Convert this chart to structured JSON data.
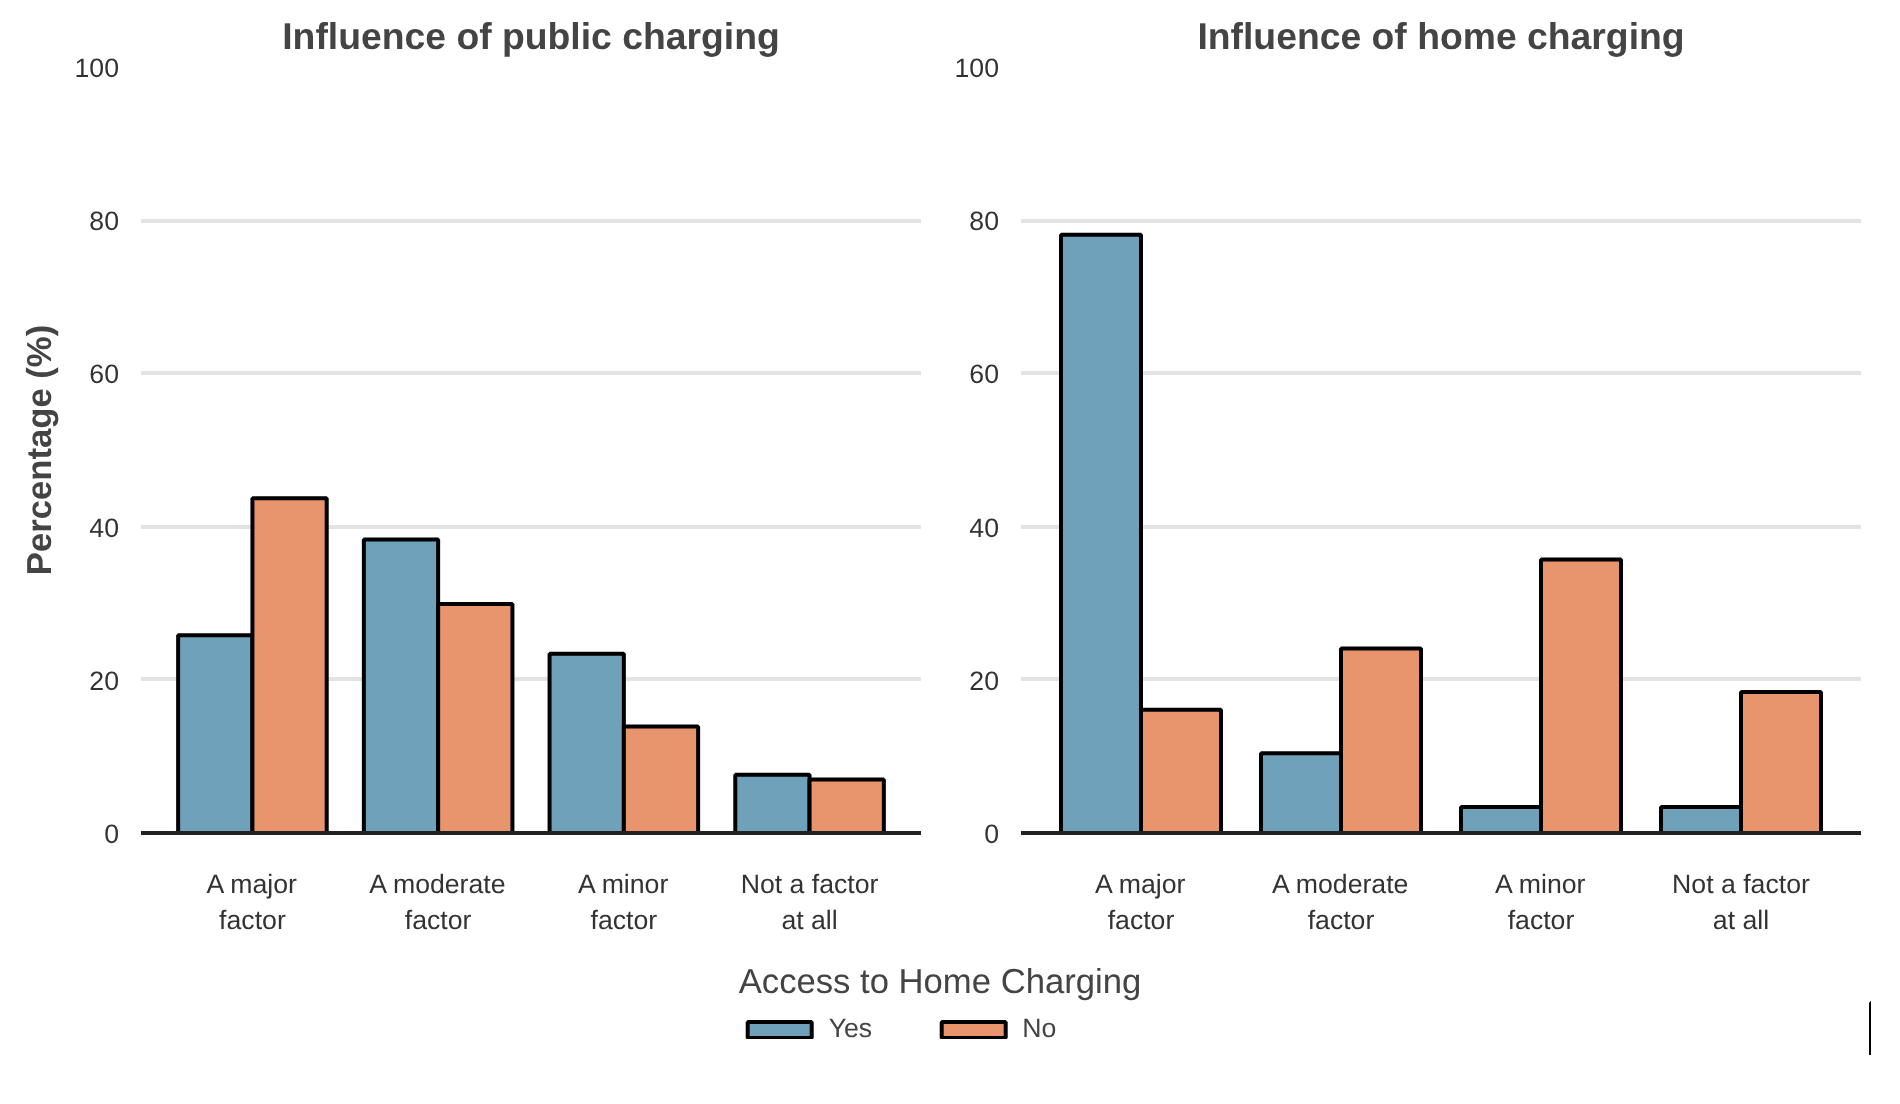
{
  "chart_data": [
    {
      "type": "bar",
      "title": "Influence of public charging",
      "ylabel": "Percentage (%)",
      "legend_title": "Access to Home Charging",
      "legend": "bottom",
      "categories": [
        "A major\nfactor",
        "A moderate\nfactor",
        "A minor\nfactor",
        "Not a factor\nat all"
      ],
      "series": [
        {
          "name": "Yes",
          "color": "#6fa1bb",
          "values": [
            25.8,
            38.3,
            23.4,
            7.6
          ]
        },
        {
          "name": "No",
          "color": "#e8956d",
          "values": [
            43.7,
            29.9,
            13.9,
            7.0
          ]
        }
      ],
      "ylim": [
        0,
        100
      ],
      "yticks": [
        0,
        20,
        40,
        60,
        80,
        100
      ],
      "grid": "y"
    },
    {
      "type": "bar",
      "title": "Influence of home charging",
      "categories": [
        "A major\nfactor",
        "A moderate\nfactor",
        "A minor\nfactor",
        "Not a factor\nat all"
      ],
      "series": [
        {
          "color": "#6fa1bb",
          "values": [
            78.1,
            10.4,
            3.4,
            3.4
          ]
        },
        {
          "color": "#e8956d",
          "values": [
            16.1,
            24.1,
            35.7,
            18.4
          ]
        }
      ],
      "ylim": [
        0,
        100
      ],
      "yticks": [
        0,
        20,
        40,
        60,
        80,
        100
      ],
      "grid": "y"
    }
  ]
}
